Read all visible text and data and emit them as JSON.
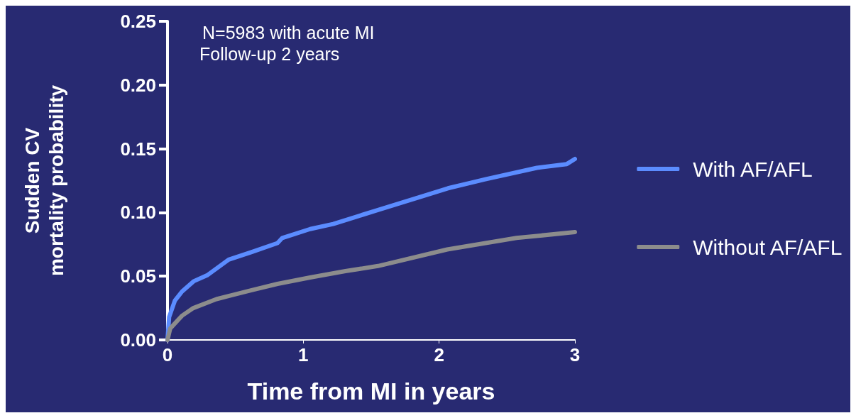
{
  "chart_data": {
    "type": "line",
    "xlabel": "Time from MI in years",
    "ylabel": "Sudden CV\nmortality probability",
    "annotations": [
      "N=5983 with acute MI",
      "Follow-up 2 years"
    ],
    "xlim": [
      0,
      3
    ],
    "xticks": [
      0,
      1,
      2,
      3
    ],
    "ylim": [
      0,
      0.25
    ],
    "yticks": [
      {
        "value": 0,
        "label": "0.00"
      },
      {
        "value": 0.05,
        "label": "0.05"
      },
      {
        "value": 0.1,
        "label": "0.10"
      },
      {
        "value": 0.15,
        "label": "0.15"
      },
      {
        "value": 0.2,
        "label": "0.20"
      },
      {
        "value": 0.25,
        "label": "0.25"
      }
    ],
    "grid": false,
    "legend": "right",
    "marker": "none",
    "line_style": "solid",
    "series": [
      {
        "name": "With AF/AFL",
        "color": "#5b8cff",
        "x": [
          0,
          0.012,
          0.055,
          0.107,
          0.192,
          0.296,
          0.45,
          0.62,
          0.81,
          0.845,
          1.05,
          1.22,
          1.4,
          1.55,
          1.825,
          2.065,
          2.34,
          2.72,
          2.94,
          3.0
        ],
        "values": [
          0,
          0.018,
          0.031,
          0.038,
          0.046,
          0.051,
          0.063,
          0.069,
          0.076,
          0.08,
          0.087,
          0.091,
          0.097,
          0.102,
          0.111,
          0.119,
          0.126,
          0.135,
          0.138,
          0.142
        ]
      },
      {
        "name": "Without AF/AFL",
        "color": "#8c8c8c",
        "x": [
          0,
          0.02,
          0.107,
          0.19,
          0.36,
          0.47,
          0.62,
          0.81,
          1.05,
          1.31,
          1.55,
          2.06,
          2.57,
          3.0
        ],
        "values": [
          0,
          0.009,
          0.019,
          0.025,
          0.032,
          0.035,
          0.039,
          0.044,
          0.049,
          0.054,
          0.058,
          0.071,
          0.08,
          0.0846
        ]
      }
    ]
  }
}
